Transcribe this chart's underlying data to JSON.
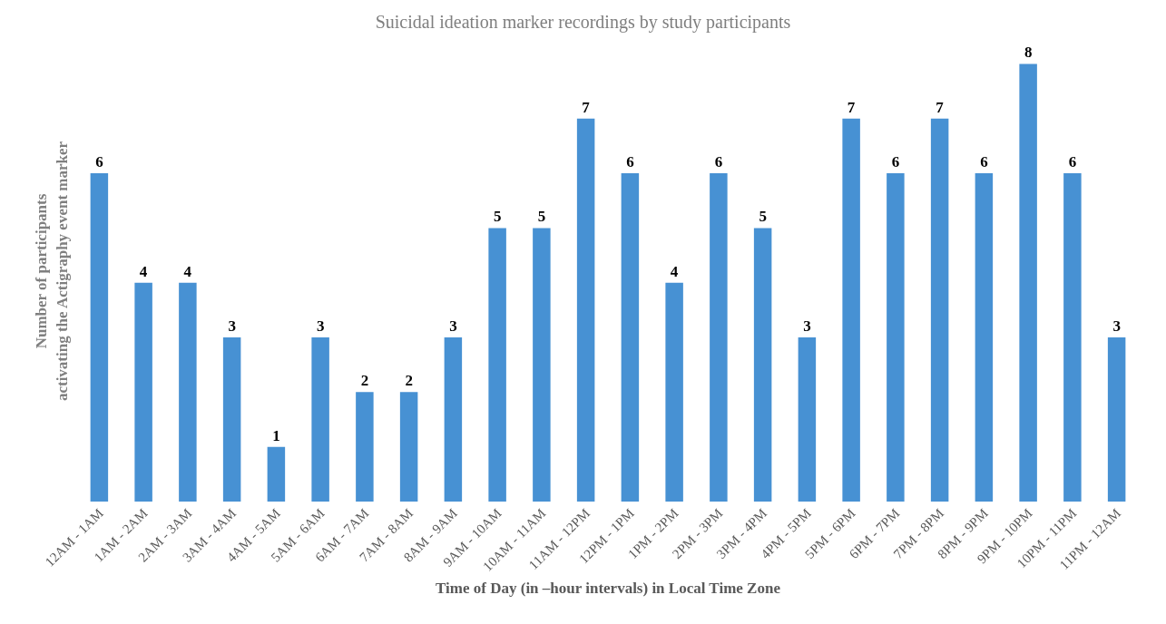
{
  "chart_data": {
    "type": "bar",
    "title": "Suicidal ideation marker recordings by study participants",
    "xlabel": "Time of Day (in –hour intervals) in Local Time Zone",
    "ylabel": "Number of participants\nactivating the Actigraphy event marker",
    "categories": [
      "12AM - 1AM",
      "1AM - 2AM",
      "2AM - 3AM",
      "3AM - 4AM",
      "4AM - 5AM",
      "5AM - 6AM",
      "6AM - 7AM",
      "7AM - 8AM",
      "8AM - 9AM",
      "9AM - 10AM",
      "10AM - 11AM",
      "11AM - 12PM",
      "12PM - 1PM",
      "1PM - 2PM",
      "2PM - 3PM",
      "3PM - 4PM",
      "4PM - 5PM",
      "5PM - 6PM",
      "6PM - 7PM",
      "7PM - 8PM",
      "8PM - 9PM",
      "9PM - 10PM",
      "10PM - 11PM",
      "11PM - 12AM"
    ],
    "values": [
      6,
      4,
      4,
      3,
      1,
      3,
      2,
      2,
      3,
      5,
      5,
      7,
      6,
      4,
      6,
      5,
      3,
      7,
      6,
      7,
      6,
      8,
      6,
      3
    ],
    "color": "#4791d3",
    "data_labels": true
  }
}
